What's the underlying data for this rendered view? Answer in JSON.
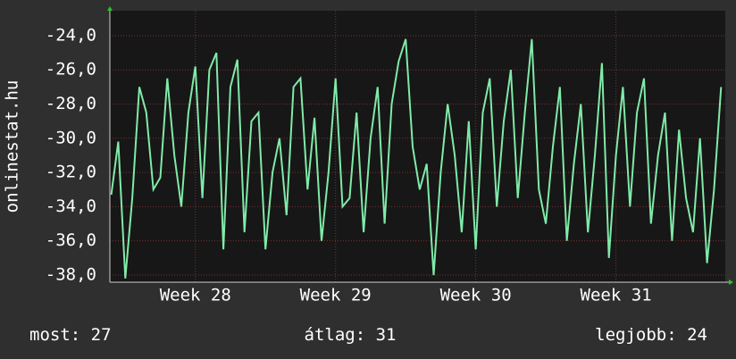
{
  "chart_data": {
    "type": "line",
    "y_label": "onlinestat.hu",
    "x": [
      27.4,
      27.45,
      27.5,
      27.55,
      27.6,
      27.65,
      27.7,
      27.75,
      27.8,
      27.85,
      27.9,
      27.95,
      28.0,
      28.05,
      28.1,
      28.15,
      28.2,
      28.25,
      28.3,
      28.35,
      28.4,
      28.45,
      28.5,
      28.55,
      28.6,
      28.65,
      28.7,
      28.75,
      28.8,
      28.85,
      28.9,
      28.95,
      29.0,
      29.05,
      29.1,
      29.15,
      29.2,
      29.25,
      29.3,
      29.35,
      29.4,
      29.45,
      29.5,
      29.55,
      29.6,
      29.65,
      29.7,
      29.75,
      29.8,
      29.85,
      29.9,
      29.95,
      30.0,
      30.05,
      30.1,
      30.15,
      30.2,
      30.25,
      30.3,
      30.35,
      30.4,
      30.45,
      30.5,
      30.55,
      30.6,
      30.65,
      30.7,
      30.75,
      30.8,
      30.85,
      30.9,
      30.95,
      31.0,
      31.05,
      31.1,
      31.15,
      31.2,
      31.25,
      31.3,
      31.35,
      31.4,
      31.45,
      31.5,
      31.55,
      31.6,
      31.65,
      31.7,
      31.75
    ],
    "series": [
      {
        "color": "#80eaa8",
        "values": [
          -33.3,
          -30.2,
          -38.2,
          -33.5,
          -27.0,
          -28.5,
          -33.0,
          -32.3,
          -26.5,
          -31.0,
          -34.0,
          -28.5,
          -25.8,
          -33.5,
          -26.0,
          -25.0,
          -36.5,
          -27.0,
          -25.4,
          -35.5,
          -29.0,
          -28.5,
          -36.5,
          -32.0,
          -30.0,
          -34.5,
          -27.0,
          -26.5,
          -33.0,
          -28.8,
          -36.0,
          -32.0,
          -26.5,
          -34.0,
          -33.5,
          -28.5,
          -35.5,
          -30.0,
          -27.0,
          -35.0,
          -28.0,
          -25.5,
          -24.2,
          -30.5,
          -33.0,
          -31.5,
          -38.0,
          -32.0,
          -28.0,
          -31.0,
          -35.5,
          -29.0,
          -36.5,
          -28.5,
          -26.5,
          -34.0,
          -29.0,
          -26.0,
          -33.5,
          -28.5,
          -24.2,
          -33.0,
          -35.0,
          -30.5,
          -27.0,
          -36.0,
          -31.5,
          -28.0,
          -35.5,
          -31.0,
          -25.6,
          -37.0,
          -31.0,
          -27.0,
          -34.0,
          -28.5,
          -26.5,
          -35.0,
          -31.0,
          -28.5,
          -36.0,
          -29.5,
          -33.5,
          -35.5,
          -30.0,
          -37.3,
          -33.0,
          -27.0
        ]
      }
    ],
    "xlim": [
      27.39,
      31.78
    ],
    "xticks": [
      {
        "value": 28,
        "label": "Week 28"
      },
      {
        "value": 29,
        "label": "Week 29"
      },
      {
        "value": 30,
        "label": "Week 30"
      },
      {
        "value": 31,
        "label": "Week 31"
      }
    ],
    "ylim": [
      -38.42,
      -22.54
    ],
    "yticks": [
      {
        "value": -24,
        "label": "-24,0"
      },
      {
        "value": -26,
        "label": "-26,0"
      },
      {
        "value": -28,
        "label": "-28,0"
      },
      {
        "value": -30,
        "label": "-30,0"
      },
      {
        "value": -32,
        "label": "-32,0"
      },
      {
        "value": -34,
        "label": "-34,0"
      },
      {
        "value": -36,
        "label": "-36,0"
      },
      {
        "value": -38,
        "label": "-38,0"
      }
    ],
    "grid": true,
    "stats": [
      {
        "label": "most:",
        "value": 27
      },
      {
        "label": "átlag:",
        "value": 31
      },
      {
        "label": "legjobb:",
        "value": 24
      }
    ]
  }
}
